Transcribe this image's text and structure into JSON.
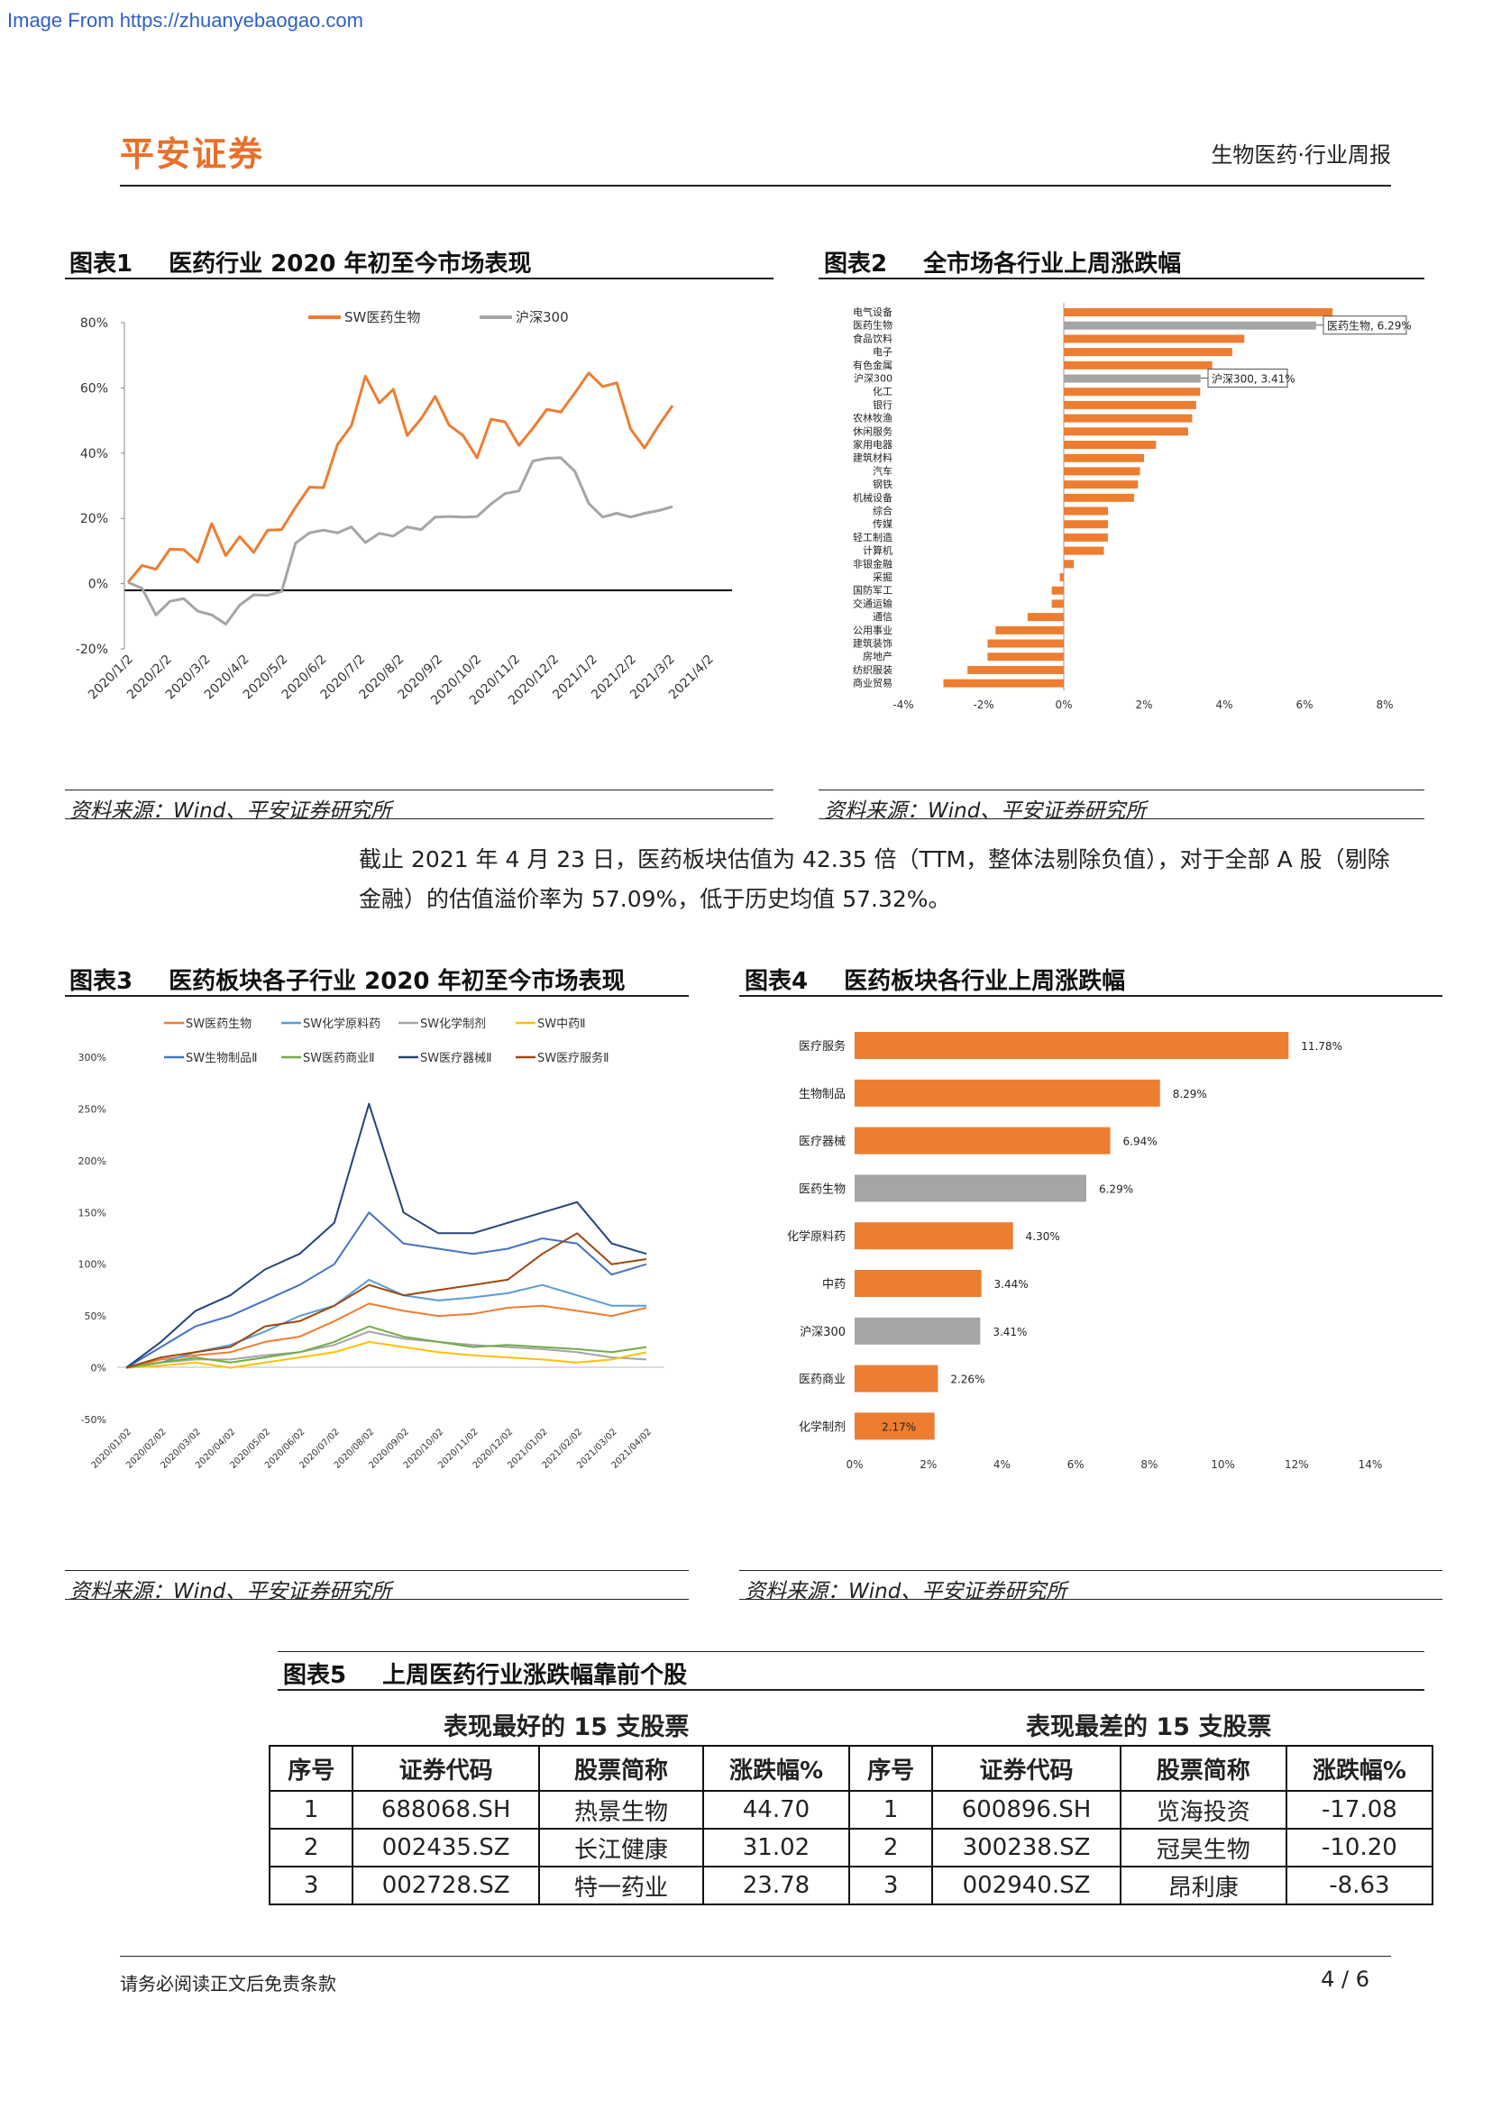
{
  "source_url": "Image From https://zhuanyebaogao.com",
  "header": {
    "logo": "平安证券",
    "right": "生物医药·行业周报"
  },
  "figure1": {
    "num": "图表1",
    "title": "医药行业 2020 年初至今市场表现",
    "source": "资料来源：Wind、平安证券研究所",
    "chart_data": {
      "type": "line",
      "legend": [
        "SW医药生物",
        "沪深300"
      ],
      "colors": [
        "#ed7d31",
        "#a5a5a5"
      ],
      "y_ticks": [
        "80%",
        "60%",
        "40%",
        "20%",
        "0%",
        "-20%"
      ],
      "ylim": [
        -20,
        80
      ],
      "x_ticks": [
        "2020/1/2",
        "2020/2/2",
        "2020/3/2",
        "2020/4/2",
        "2020/5/2",
        "2020/6/2",
        "2020/7/2",
        "2020/8/2",
        "2020/9/2",
        "2020/10/2",
        "2020/11/2",
        "2020/12/2",
        "2021/1/2",
        "2021/2/2",
        "2021/3/2",
        "2021/4/2"
      ],
      "series": [
        {
          "name": "SW医药生物",
          "values": [
            0,
            6,
            4,
            11,
            10,
            7,
            18,
            9,
            14,
            10,
            16,
            17,
            23,
            30,
            29,
            43,
            48,
            64,
            55,
            60,
            45,
            51,
            57,
            49,
            45,
            39,
            50,
            50,
            42,
            48,
            53,
            53,
            58,
            65,
            60,
            62,
            47,
            42,
            48,
            55
          ]
        },
        {
          "name": "沪深300",
          "values": [
            0,
            -1,
            -10,
            -5,
            -5,
            -8,
            -10,
            -12,
            -7,
            -3,
            -4,
            -2,
            12,
            16,
            16,
            16,
            17,
            13,
            15,
            15,
            17,
            17,
            20,
            21,
            20,
            21,
            24,
            28,
            28,
            38,
            38,
            39,
            34,
            25,
            20,
            22,
            20,
            22,
            22,
            24
          ]
        }
      ]
    }
  },
  "figure2": {
    "num": "图表2",
    "title": "全市场各行业上周涨跌幅",
    "source": "资料来源：Wind、平安证券研究所",
    "chart_data": {
      "type": "bar",
      "orientation": "horizontal",
      "categories": [
        "电气设备",
        "医药生物",
        "食品饮料",
        "电子",
        "有色金属",
        "沪深300",
        "化工",
        "银行",
        "农林牧渔",
        "休闲服务",
        "家用电器",
        "建筑材料",
        "汽车",
        "钢铁",
        "机械设备",
        "综合",
        "传媒",
        "轻工制造",
        "计算机",
        "非银金融",
        "采掘",
        "国防军工",
        "交通运输",
        "通信",
        "公用事业",
        "建筑装饰",
        "房地产",
        "纺织服装",
        "商业贸易"
      ],
      "values": [
        6.7,
        6.29,
        4.5,
        4.2,
        3.7,
        3.41,
        3.4,
        3.3,
        3.2,
        3.1,
        2.3,
        2.0,
        1.9,
        1.85,
        1.75,
        1.1,
        1.1,
        1.1,
        1.0,
        0.25,
        -0.1,
        -0.3,
        -0.3,
        -0.9,
        -1.7,
        -1.9,
        -1.9,
        -2.4,
        -3.0
      ],
      "highlight": [
        "医药生物",
        "沪深300"
      ],
      "colors": {
        "default": "#ed7d31",
        "highlight": "#a5a5a5"
      },
      "callouts": [
        "医药生物, 6.29%",
        "沪深300, 3.41%"
      ],
      "x_ticks": [
        "-4%",
        "-2%",
        "0%",
        "2%",
        "4%",
        "6%",
        "8%"
      ],
      "xlim": [
        -4,
        8
      ]
    }
  },
  "paragraph": "截止 2021 年 4 月 23 日，医药板块估值为 42.35 倍（TTM，整体法剔除负值），对于全部 A 股（剔除金融）的估值溢价率为 57.09%，低于历史均值 57.32%。",
  "figure3": {
    "num": "图表3",
    "title": "医药板块各子行业 2020 年初至今市场表现",
    "source": "资料来源：Wind、平安证券研究所",
    "chart_data": {
      "type": "line",
      "legend": [
        "SW医药生物",
        "SW化学原料药",
        "SW化学制剂",
        "SW中药Ⅱ",
        "SW生物制品Ⅱ",
        "SW医药商业Ⅱ",
        "SW医疗器械Ⅱ",
        "SW医疗服务Ⅱ"
      ],
      "colors": [
        "#ed7d31",
        "#5b9bd5",
        "#a5a5a5",
        "#ffc000",
        "#4472c4",
        "#70ad47",
        "#264478",
        "#9e480e"
      ],
      "y_ticks": [
        "300%",
        "250%",
        "200%",
        "150%",
        "100%",
        "50%",
        "0%",
        "-50%"
      ],
      "ylim": [
        -50,
        300
      ],
      "x_ticks": [
        "2020/01/02",
        "2020/02/02",
        "2020/03/02",
        "2020/04/02",
        "2020/05/02",
        "2020/06/02",
        "2020/07/02",
        "2020/08/02",
        "2020/09/02",
        "2020/10/02",
        "2020/11/02",
        "2020/12/02",
        "2021/01/02",
        "2021/02/02",
        "2021/03/02",
        "2021/04/02"
      ],
      "series": [
        {
          "name": "SW医药生物",
          "values": [
            0,
            8,
            12,
            15,
            25,
            30,
            45,
            62,
            55,
            50,
            52,
            58,
            60,
            55,
            50,
            58
          ]
        },
        {
          "name": "SW化学原料药",
          "values": [
            0,
            5,
            15,
            22,
            35,
            50,
            60,
            85,
            70,
            65,
            68,
            72,
            80,
            70,
            60,
            60
          ]
        },
        {
          "name": "SW化学制剂",
          "values": [
            0,
            5,
            8,
            8,
            12,
            15,
            22,
            35,
            28,
            25,
            22,
            20,
            18,
            15,
            10,
            8
          ]
        },
        {
          "name": "SW中药Ⅱ",
          "values": [
            0,
            2,
            5,
            0,
            5,
            10,
            15,
            25,
            20,
            15,
            12,
            10,
            8,
            5,
            8,
            15
          ]
        },
        {
          "name": "SW生物制品Ⅱ",
          "values": [
            0,
            20,
            40,
            50,
            65,
            80,
            100,
            150,
            120,
            115,
            110,
            115,
            125,
            120,
            90,
            100
          ]
        },
        {
          "name": "SW医药商业Ⅱ",
          "values": [
            0,
            5,
            10,
            5,
            10,
            15,
            25,
            40,
            30,
            25,
            20,
            22,
            20,
            18,
            15,
            20
          ]
        },
        {
          "name": "SW医疗器械Ⅱ",
          "values": [
            0,
            25,
            55,
            70,
            95,
            110,
            140,
            255,
            150,
            130,
            130,
            140,
            150,
            160,
            120,
            110
          ]
        },
        {
          "name": "SW医疗服务Ⅱ",
          "values": [
            0,
            10,
            15,
            20,
            40,
            45,
            60,
            80,
            70,
            75,
            80,
            85,
            110,
            130,
            100,
            105
          ]
        }
      ]
    }
  },
  "figure4": {
    "num": "图表4",
    "title": "医药板块各行业上周涨跌幅",
    "source": "资料来源：Wind、平安证券研究所",
    "chart_data": {
      "type": "bar",
      "orientation": "horizontal",
      "categories": [
        "医疗服务",
        "生物制品",
        "医疗器械",
        "医药生物",
        "化学原料药",
        "中药",
        "沪深300",
        "医药商业",
        "化学制剂"
      ],
      "values": [
        11.78,
        8.29,
        6.94,
        6.29,
        4.3,
        3.44,
        3.41,
        2.26,
        2.17
      ],
      "labels": [
        "11.78%",
        "8.29%",
        "6.94%",
        "6.29%",
        "4.30%",
        "3.44%",
        "3.41%",
        "2.26%",
        "2.17%"
      ],
      "highlight": [
        "医药生物",
        "沪深300"
      ],
      "colors": {
        "default": "#ed7d31",
        "highlight": "#a5a5a5"
      },
      "x_ticks": [
        "0%",
        "2%",
        "4%",
        "6%",
        "8%",
        "10%",
        "12%",
        "14%"
      ],
      "xlim": [
        0,
        14
      ]
    }
  },
  "figure5": {
    "num": "图表5",
    "title": "上周医药行业涨跌幅靠前个股",
    "best_head": "表现最好的 15 支股票",
    "worst_head": "表现最差的 15 支股票",
    "columns": [
      "序号",
      "证券代码",
      "股票简称",
      "涨跌幅%",
      "序号",
      "证券代码",
      "股票简称",
      "涨跌幅%"
    ],
    "rows": [
      [
        "1",
        "688068.SH",
        "热景生物",
        "44.70",
        "1",
        "600896.SH",
        "览海投资",
        "-17.08"
      ],
      [
        "2",
        "002435.SZ",
        "长江健康",
        "31.02",
        "2",
        "300238.SZ",
        "冠昊生物",
        "-10.20"
      ],
      [
        "3",
        "002728.SZ",
        "特一药业",
        "23.78",
        "3",
        "002940.SZ",
        "昂利康",
        "-8.63"
      ]
    ]
  },
  "footer": {
    "left": "请务必阅读正文后免责条款",
    "page": "4 / 6"
  }
}
